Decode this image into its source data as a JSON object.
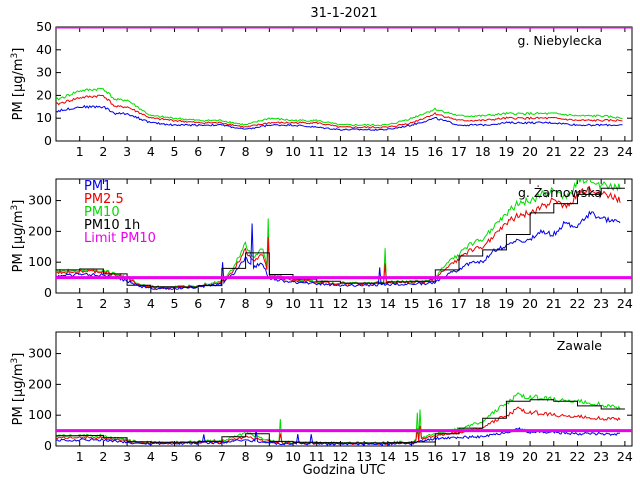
{
  "figure_title": "31-1-2021",
  "x_axis_label": "Godzina UTC",
  "y_axis_label": "PM [µg/m",
  "y_axis_label_sup": "3",
  "y_axis_label_end": "]",
  "colors": {
    "pm1": "#0000ee",
    "pm25": "#ee0000",
    "pm10": "#00dd00",
    "pm10_1h": "#000000",
    "limit": "#ee00ee"
  },
  "legend": [
    "PM1",
    "PM2.5",
    "PM10",
    "PM10 1h",
    "Limit PM10"
  ],
  "chart_data": [
    {
      "type": "line",
      "station": "g. Niebylecka",
      "xlim": [
        0,
        24.3
      ],
      "ylim": [
        0,
        50
      ],
      "x_ticks": [
        1,
        2,
        3,
        4,
        5,
        6,
        7,
        8,
        9,
        10,
        11,
        12,
        13,
        14,
        15,
        16,
        17,
        18,
        19,
        20,
        21,
        22,
        23,
        24
      ],
      "y_ticks": [
        0,
        10,
        20,
        30,
        40,
        50
      ],
      "limit_value": 50,
      "show_hourly": false,
      "series": [
        {
          "name": "PM1",
          "color_key": "pm1",
          "x": [
            0,
            1,
            2,
            2.5,
            3,
            4,
            5,
            6,
            7,
            8,
            9,
            10,
            11,
            12,
            13,
            14,
            15,
            16,
            17,
            18,
            19,
            20,
            21,
            22,
            23,
            23.9
          ],
          "y": [
            13,
            15,
            15,
            12,
            12,
            8,
            7,
            7,
            7,
            5,
            7,
            7,
            6,
            5,
            5,
            5,
            7,
            10,
            7,
            7,
            8,
            8,
            8,
            7,
            7,
            7
          ]
        },
        {
          "name": "PM2.5",
          "color_key": "pm25",
          "x": [
            0,
            1,
            2,
            2.5,
            3,
            4,
            5,
            6,
            7,
            8,
            9,
            10,
            11,
            12,
            13,
            14,
            15,
            16,
            17,
            18,
            19,
            20,
            21,
            22,
            23,
            23.9
          ],
          "y": [
            16,
            19,
            20,
            15,
            15,
            10,
            9,
            8,
            8,
            6,
            8,
            8,
            8,
            6,
            6,
            6,
            8,
            12,
            9,
            9,
            10,
            10,
            10,
            9,
            9,
            9
          ]
        },
        {
          "name": "PM10",
          "color_key": "pm10",
          "x": [
            0,
            1,
            2,
            2.5,
            3,
            4,
            5,
            6,
            7,
            8,
            9,
            10,
            11,
            12,
            13,
            14,
            15,
            16,
            17,
            18,
            19,
            20,
            21,
            22,
            23,
            23.9
          ],
          "y": [
            18,
            22,
            23,
            18,
            18,
            11,
            10,
            9,
            9,
            7,
            10,
            9,
            9,
            7,
            7,
            7,
            10,
            14,
            11,
            11,
            12,
            12,
            12,
            11,
            11,
            10
          ]
        }
      ]
    },
    {
      "type": "line",
      "station": "g. Żarnowska",
      "xlim": [
        0,
        24.3
      ],
      "ylim": [
        0,
        370
      ],
      "x_ticks": [
        1,
        2,
        3,
        4,
        5,
        6,
        7,
        8,
        9,
        10,
        11,
        12,
        13,
        14,
        15,
        16,
        17,
        18,
        19,
        20,
        21,
        22,
        23,
        24
      ],
      "y_ticks": [
        0,
        100,
        200,
        300
      ],
      "limit_value": 50,
      "show_hourly": true,
      "series": [
        {
          "name": "PM1",
          "color_key": "pm1",
          "x": [
            0,
            1,
            2,
            3,
            3.5,
            4,
            5,
            6,
            7,
            7.5,
            8,
            8.3,
            8.7,
            9,
            9.5,
            10,
            11,
            12,
            13,
            14,
            15,
            15.5,
            16,
            16.5,
            17,
            17.5,
            18,
            18.5,
            19,
            19.5,
            20,
            20.5,
            21,
            21.5,
            22,
            22.5,
            23,
            23.5,
            23.8
          ],
          "y": [
            55,
            60,
            58,
            40,
            22,
            15,
            15,
            20,
            30,
            60,
            115,
            80,
            100,
            45,
            40,
            35,
            30,
            25,
            25,
            28,
            30,
            30,
            35,
            60,
            75,
            100,
            100,
            140,
            150,
            170,
            175,
            200,
            190,
            230,
            210,
            260,
            240,
            230,
            225
          ]
        },
        {
          "name": "PM2.5",
          "color_key": "pm25",
          "x": [
            0,
            1,
            2,
            3,
            3.5,
            4,
            5,
            6,
            7,
            7.5,
            8,
            8.3,
            8.7,
            9,
            9.5,
            10,
            11,
            12,
            13,
            14,
            15,
            15.5,
            16,
            16.5,
            17,
            17.5,
            18,
            18.5,
            19,
            19.5,
            20,
            20.5,
            21,
            21.5,
            22,
            22.5,
            23,
            23.5,
            23.8
          ],
          "y": [
            65,
            70,
            68,
            48,
            25,
            18,
            17,
            22,
            35,
            75,
            140,
            100,
            125,
            55,
            48,
            40,
            35,
            30,
            30,
            33,
            35,
            35,
            45,
            85,
            110,
            140,
            150,
            190,
            230,
            250,
            260,
            280,
            300,
            280,
            320,
            340,
            320,
            310,
            300
          ]
        },
        {
          "name": "PM10",
          "color_key": "pm10",
          "x": [
            0,
            1,
            2,
            3,
            3.5,
            4,
            5,
            6,
            7,
            7.5,
            8,
            8.3,
            8.7,
            9,
            9.5,
            10,
            11,
            12,
            13,
            14,
            15,
            15.5,
            16,
            16.5,
            17,
            17.5,
            18,
            18.5,
            19,
            19.5,
            20,
            20.5,
            21,
            21.5,
            22,
            22.5,
            23,
            23.5,
            23.8
          ],
          "y": [
            70,
            75,
            72,
            52,
            28,
            20,
            19,
            25,
            40,
            85,
            160,
            110,
            145,
            60,
            52,
            45,
            38,
            32,
            32,
            36,
            38,
            38,
            50,
            100,
            125,
            160,
            175,
            220,
            260,
            290,
            300,
            320,
            330,
            310,
            360,
            370,
            350,
            340,
            345
          ]
        },
        {
          "name": "PM10 1h",
          "color_key": "pm10_1h",
          "hourly": [
            75,
            78,
            62,
            25,
            20,
            19,
            24,
            80,
            130,
            60,
            45,
            38,
            32,
            32,
            36,
            38,
            75,
            120,
            140,
            190,
            260,
            290,
            320,
            340
          ]
        }
      ]
    },
    {
      "type": "line",
      "station": "Zawale",
      "xlim": [
        0,
        24.3
      ],
      "ylim": [
        0,
        370
      ],
      "x_ticks": [
        1,
        2,
        3,
        4,
        5,
        6,
        7,
        8,
        9,
        10,
        11,
        12,
        13,
        14,
        15,
        16,
        17,
        18,
        19,
        20,
        21,
        22,
        23,
        24
      ],
      "y_ticks": [
        0,
        100,
        200,
        300
      ],
      "limit_value": 50,
      "show_hourly": true,
      "series": [
        {
          "name": "PM1",
          "color_key": "pm1",
          "x": [
            0,
            1,
            2,
            3,
            3.5,
            4,
            5,
            6,
            7,
            7.5,
            8,
            8.5,
            9,
            9.5,
            10,
            11,
            12,
            13,
            14,
            15,
            16,
            17,
            18,
            19,
            19.5,
            20,
            21,
            22,
            23,
            23.8
          ],
          "y": [
            18,
            20,
            20,
            12,
            8,
            8,
            8,
            9,
            10,
            15,
            20,
            15,
            10,
            8,
            8,
            7,
            6,
            6,
            7,
            8,
            25,
            28,
            30,
            45,
            55,
            45,
            45,
            40,
            40,
            38
          ]
        },
        {
          "name": "PM2.5",
          "color_key": "pm25",
          "x": [
            0,
            1,
            2,
            3,
            3.5,
            4,
            5,
            6,
            7,
            7.5,
            8,
            8.5,
            9,
            9.5,
            10,
            11,
            12,
            13,
            14,
            15,
            16,
            17,
            18,
            19,
            19.5,
            20,
            21,
            22,
            23,
            23.8
          ],
          "y": [
            25,
            28,
            27,
            16,
            10,
            10,
            10,
            12,
            14,
            20,
            30,
            22,
            14,
            10,
            10,
            9,
            8,
            8,
            9,
            11,
            35,
            45,
            60,
            100,
            120,
            110,
            100,
            95,
            90,
            85
          ]
        },
        {
          "name": "PM10",
          "color_key": "pm10",
          "x": [
            0,
            1,
            2,
            3,
            3.5,
            4,
            5,
            6,
            7,
            7.5,
            8,
            8.5,
            9,
            9.5,
            10,
            11,
            12,
            13,
            14,
            15,
            16,
            17,
            18,
            19,
            19.5,
            20,
            21,
            22,
            23,
            23.8
          ],
          "y": [
            32,
            35,
            34,
            20,
            12,
            12,
            12,
            15,
            18,
            28,
            45,
            30,
            18,
            12,
            12,
            11,
            10,
            10,
            11,
            14,
            42,
            55,
            80,
            140,
            165,
            160,
            150,
            145,
            135,
            120
          ]
        },
        {
          "name": "PM10 1h",
          "color_key": "pm10_1h",
          "hourly": [
            33,
            34,
            27,
            14,
            12,
            12,
            15,
            30,
            40,
            15,
            12,
            11,
            10,
            10,
            11,
            13,
            40,
            58,
            90,
            145,
            150,
            145,
            130,
            120
          ]
        }
      ]
    }
  ]
}
